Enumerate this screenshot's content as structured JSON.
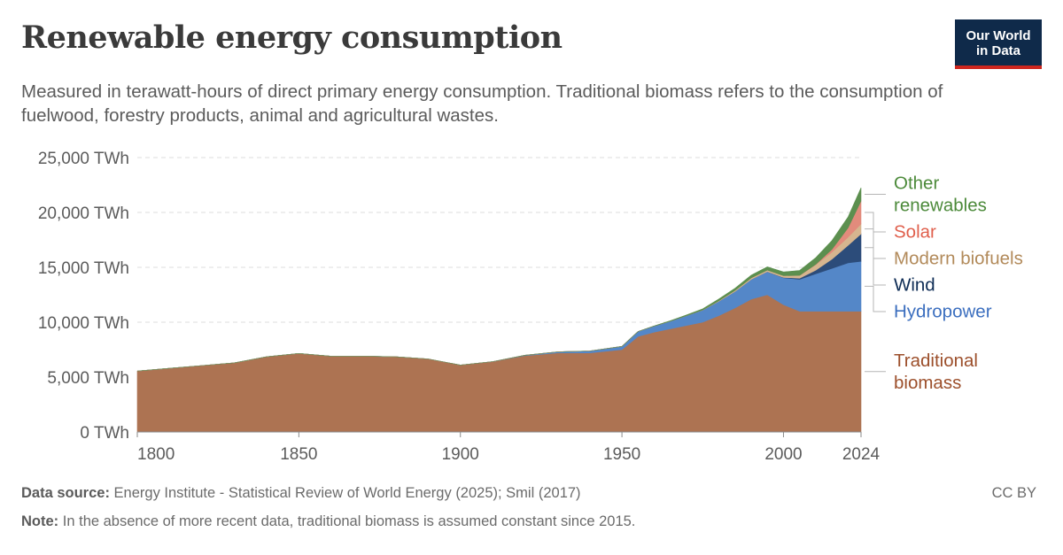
{
  "header": {
    "title": "Renewable energy consumption",
    "subtitle": "Measured in terawatt-hours of direct primary energy consumption. Traditional biomass refers to the consumption of fuelwood, forestry products, animal and agricultural wastes.",
    "logo_line1": "Our World",
    "logo_line2": "in Data"
  },
  "footer": {
    "source_label": "Data source:",
    "source_text": "Energy Institute - Statistical Review of World Energy (2025); Smil (2017)",
    "note_label": "Note:",
    "note_text": "In the absence of more recent data, traditional biomass is assumed constant since 2015.",
    "license": "CC BY"
  },
  "chart_data": {
    "type": "area",
    "stacked": true,
    "unit": "TWh",
    "xlim": [
      1800,
      2024
    ],
    "ylim": [
      0,
      25000
    ],
    "x_ticks": [
      1800,
      1850,
      1900,
      1950,
      2000,
      2024
    ],
    "y_ticks": [
      {
        "value": 0,
        "label": "0 TWh"
      },
      {
        "value": 5000,
        "label": "5,000 TWh"
      },
      {
        "value": 10000,
        "label": "10,000 TWh"
      },
      {
        "value": 15000,
        "label": "15,000 TWh"
      },
      {
        "value": 20000,
        "label": "20,000 TWh"
      },
      {
        "value": 25000,
        "label": "25,000 TWh"
      }
    ],
    "grid": true,
    "legend_placement": "right",
    "x": [
      1800,
      1810,
      1820,
      1830,
      1840,
      1850,
      1860,
      1870,
      1880,
      1890,
      1900,
      1910,
      1920,
      1930,
      1940,
      1950,
      1955,
      1960,
      1965,
      1970,
      1975,
      1980,
      1985,
      1990,
      1995,
      2000,
      2005,
      2010,
      2015,
      2020,
      2024
    ],
    "series": [
      {
        "name": "Traditional biomass",
        "label_lines": [
          "Traditional",
          "biomass"
        ],
        "color": "#ad7352",
        "label_color": "#9c4f2b",
        "values": [
          5550,
          5800,
          6050,
          6300,
          6850,
          7150,
          6900,
          6900,
          6850,
          6650,
          6100,
          6400,
          6950,
          7200,
          7200,
          7500,
          8700,
          9100,
          9400,
          9700,
          10000,
          10600,
          11300,
          12100,
          12500,
          11600,
          11000,
          11000,
          11000,
          11000,
          11000
        ]
      },
      {
        "name": "Hydropower",
        "label_lines": [
          "Hydropower"
        ],
        "color": "#5487c8",
        "label_color": "#3c6fbf",
        "values": [
          0,
          0,
          0,
          0,
          0,
          0,
          0,
          0,
          0,
          0,
          0,
          10,
          40,
          100,
          180,
          300,
          450,
          550,
          700,
          900,
          1100,
          1300,
          1500,
          1800,
          2100,
          2450,
          2900,
          3400,
          3900,
          4400,
          4550
        ]
      },
      {
        "name": "Wind",
        "label_lines": [
          "Wind"
        ],
        "color": "#2c4c7a",
        "label_color": "#0e2c55",
        "values": [
          0,
          0,
          0,
          0,
          0,
          0,
          0,
          0,
          0,
          0,
          0,
          0,
          0,
          0,
          0,
          0,
          0,
          0,
          0,
          0,
          0,
          0,
          0,
          5,
          10,
          30,
          110,
          340,
          840,
          1600,
          2500
        ]
      },
      {
        "name": "Modern biofuels",
        "label_lines": [
          "Modern biofuels"
        ],
        "color": "#d6b58f",
        "label_color": "#b28a5a",
        "values": [
          0,
          0,
          0,
          0,
          0,
          0,
          0,
          0,
          0,
          0,
          0,
          0,
          0,
          0,
          0,
          0,
          0,
          0,
          0,
          0,
          20,
          60,
          100,
          130,
          140,
          150,
          250,
          500,
          650,
          750,
          900
        ]
      },
      {
        "name": "Solar",
        "label_lines": [
          "Solar"
        ],
        "color": "#e28b7c",
        "label_color": "#e0604d",
        "values": [
          0,
          0,
          0,
          0,
          0,
          0,
          0,
          0,
          0,
          0,
          0,
          0,
          0,
          0,
          0,
          0,
          0,
          0,
          0,
          0,
          0,
          0,
          0,
          0,
          0,
          2,
          10,
          35,
          250,
          850,
          2100
        ]
      },
      {
        "name": "Other renewables",
        "label_lines": [
          "Other",
          "renewables"
        ],
        "color": "#5c8f4f",
        "label_color": "#4c8a3a",
        "values": [
          0,
          0,
          0,
          0,
          0,
          0,
          0,
          0,
          0,
          0,
          0,
          0,
          0,
          0,
          0,
          0,
          0,
          20,
          40,
          60,
          100,
          150,
          200,
          250,
          300,
          350,
          450,
          600,
          800,
          1000,
          1200
        ]
      }
    ]
  }
}
